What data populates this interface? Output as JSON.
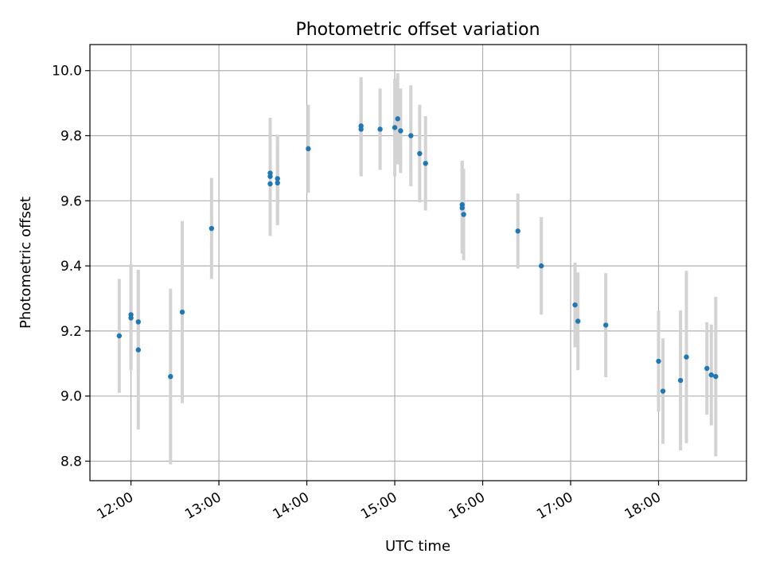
{
  "chart_data": {
    "type": "scatter",
    "title": "Photometric offset variation",
    "xlabel": "UTC time",
    "ylabel": "Photometric offset",
    "xlim": [
      "11:32",
      "19:00"
    ],
    "ylim": [
      8.74,
      10.08
    ],
    "x_ticks": [
      "12:00",
      "13:00",
      "14:00",
      "15:00",
      "16:00",
      "17:00",
      "18:00"
    ],
    "y_ticks": [
      "8.8",
      "9.0",
      "9.2",
      "9.4",
      "9.6",
      "9.8",
      "10.0"
    ],
    "grid": true,
    "point_color": "#1f77b4",
    "errorbar_color": "#d3d3d3",
    "series": [
      {
        "points": [
          {
            "x": "11:52",
            "y": 9.185,
            "err": 0.175
          },
          {
            "x": "12:00",
            "y": 9.25,
            "err": 0.155
          },
          {
            "x": "12:00",
            "y": 9.24,
            "err": 0.16
          },
          {
            "x": "12:05",
            "y": 9.228,
            "err": 0.16
          },
          {
            "x": "12:05",
            "y": 9.142,
            "err": 0.245
          },
          {
            "x": "12:27",
            "y": 9.06,
            "err": 0.27
          },
          {
            "x": "12:35",
            "y": 9.258,
            "err": 0.28
          },
          {
            "x": "12:55",
            "y": 9.515,
            "err": 0.155
          },
          {
            "x": "13:35",
            "y": 9.685,
            "err": 0.17
          },
          {
            "x": "13:35",
            "y": 9.675,
            "err": 0.175
          },
          {
            "x": "13:35",
            "y": 9.652,
            "err": 0.16
          },
          {
            "x": "13:40",
            "y": 9.668,
            "err": 0.135
          },
          {
            "x": "13:40",
            "y": 9.655,
            "err": 0.13
          },
          {
            "x": "14:01",
            "y": 9.76,
            "err": 0.135
          },
          {
            "x": "14:37",
            "y": 9.83,
            "err": 0.15
          },
          {
            "x": "14:37",
            "y": 9.82,
            "err": 0.145
          },
          {
            "x": "14:50",
            "y": 9.82,
            "err": 0.125
          },
          {
            "x": "15:00",
            "y": 9.825,
            "err": 0.15
          },
          {
            "x": "15:02",
            "y": 9.852,
            "err": 0.14
          },
          {
            "x": "15:04",
            "y": 9.815,
            "err": 0.13
          },
          {
            "x": "15:11",
            "y": 9.8,
            "err": 0.155
          },
          {
            "x": "15:17",
            "y": 9.745,
            "err": 0.15
          },
          {
            "x": "15:21",
            "y": 9.715,
            "err": 0.145
          },
          {
            "x": "15:46",
            "y": 9.588,
            "err": 0.135
          },
          {
            "x": "15:46",
            "y": 9.578,
            "err": 0.14
          },
          {
            "x": "15:47",
            "y": 9.558,
            "err": 0.14
          },
          {
            "x": "16:24",
            "y": 9.507,
            "err": 0.115
          },
          {
            "x": "16:40",
            "y": 9.4,
            "err": 0.15
          },
          {
            "x": "17:03",
            "y": 9.28,
            "err": 0.13
          },
          {
            "x": "17:05",
            "y": 9.23,
            "err": 0.15
          },
          {
            "x": "17:24",
            "y": 9.218,
            "err": 0.16
          },
          {
            "x": "18:00",
            "y": 9.107,
            "err": 0.155
          },
          {
            "x": "18:03",
            "y": 9.015,
            "err": 0.162
          },
          {
            "x": "18:15",
            "y": 9.048,
            "err": 0.215
          },
          {
            "x": "18:19",
            "y": 9.12,
            "err": 0.265
          },
          {
            "x": "18:33",
            "y": 9.085,
            "err": 0.142
          },
          {
            "x": "18:36",
            "y": 9.065,
            "err": 0.155
          },
          {
            "x": "18:39",
            "y": 9.06,
            "err": 0.245
          }
        ]
      }
    ]
  }
}
